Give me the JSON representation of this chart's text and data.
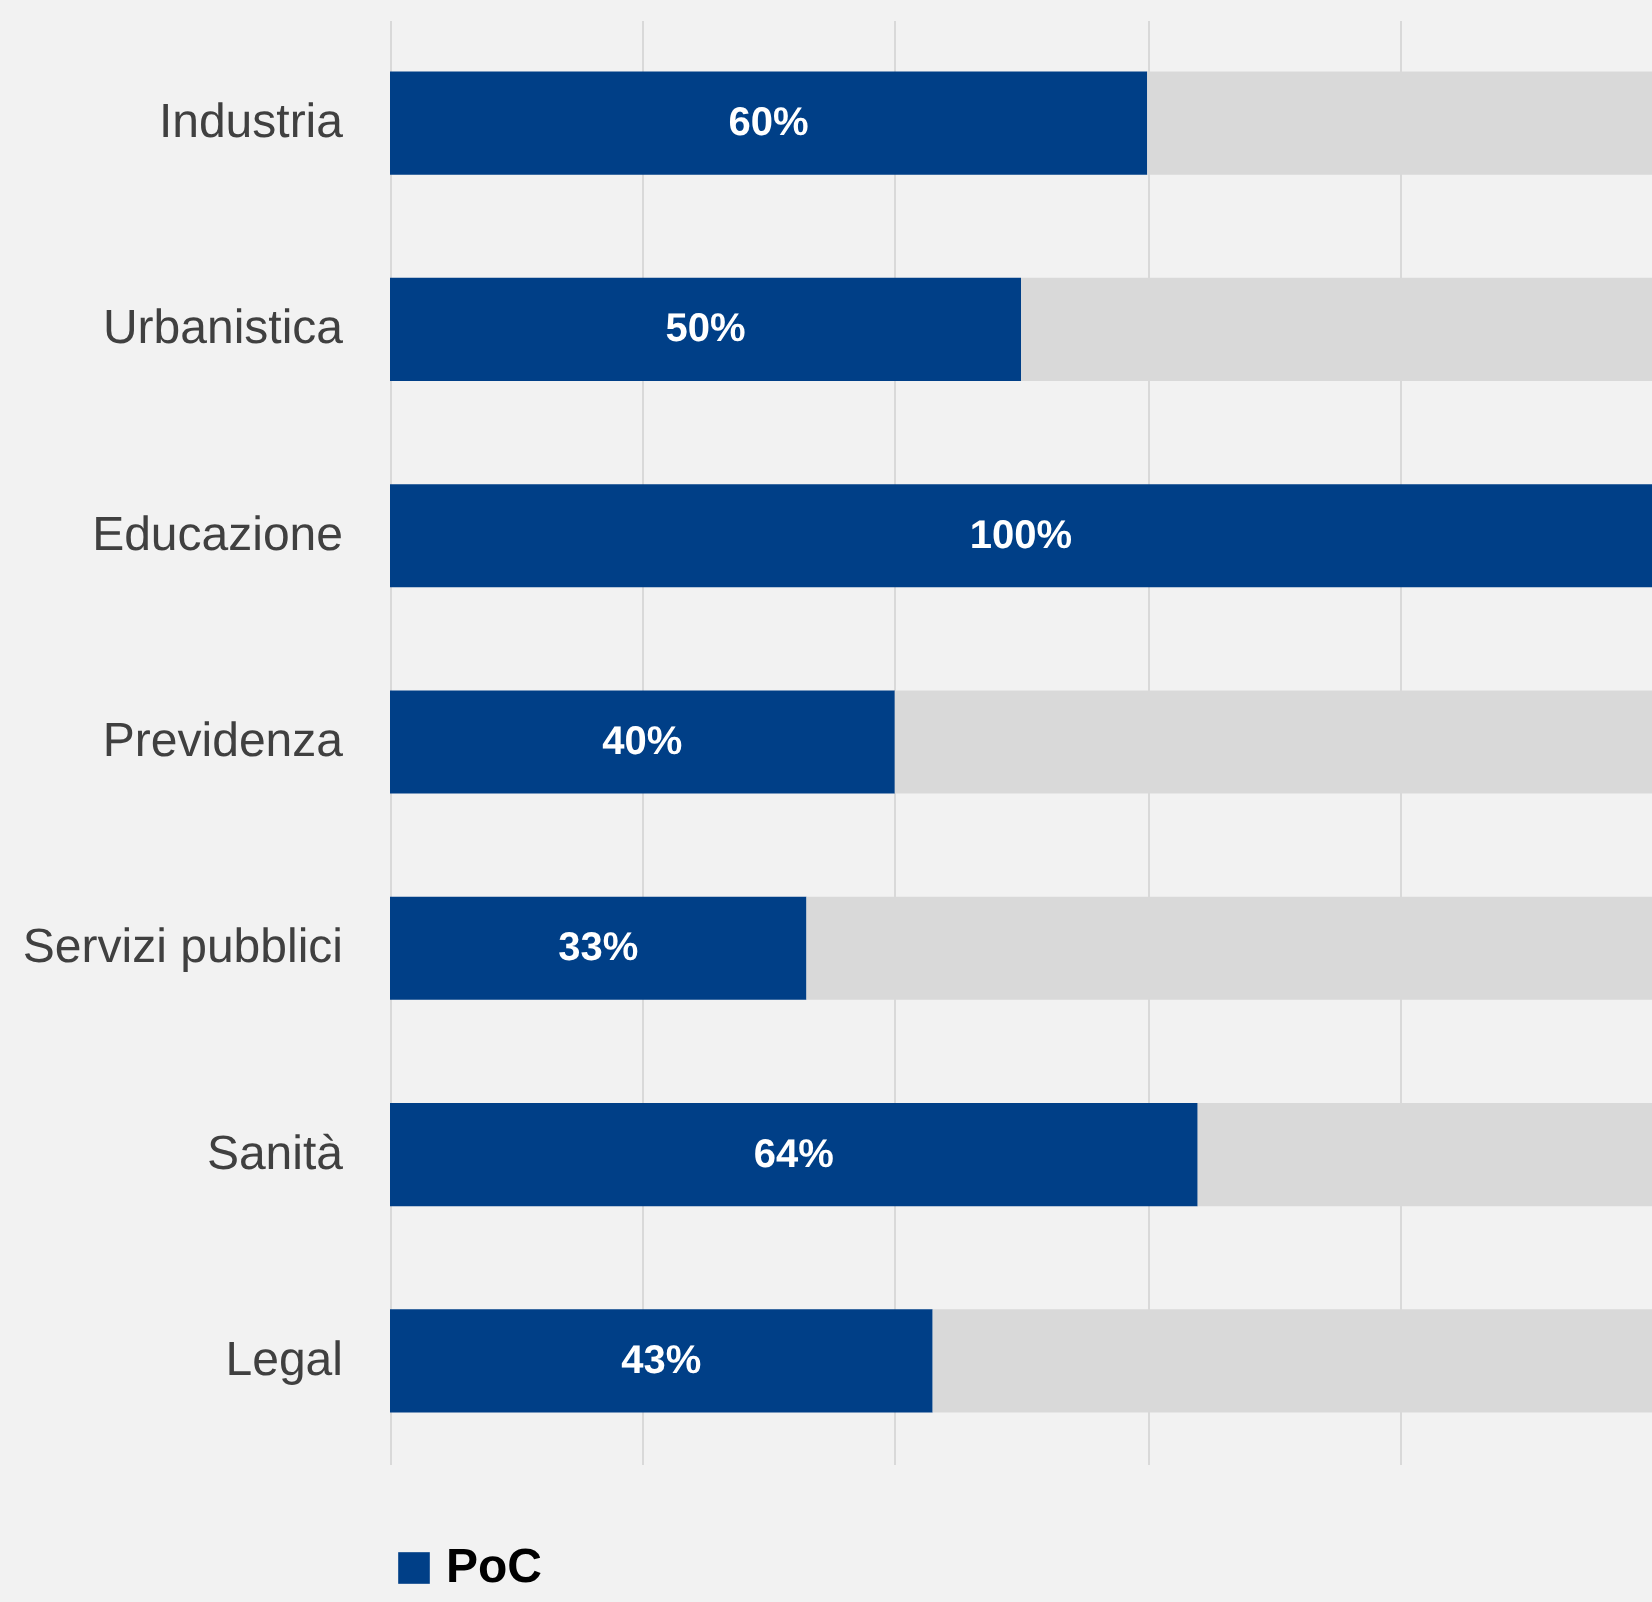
{
  "chart_data": {
    "type": "bar",
    "orientation": "horizontal",
    "stacked": true,
    "categories": [
      "Industria",
      "Urbanistica",
      "Educazione",
      "Previdenza",
      "Servizi pubblici",
      "Sanità",
      "Legal"
    ],
    "series": [
      {
        "name": "PoC",
        "color": "#003f87",
        "values": [
          60,
          50,
          100,
          40,
          33,
          64,
          43
        ],
        "value_labels": [
          "60%",
          "50%",
          "100%",
          "40%",
          "33%",
          "64%",
          "43%"
        ]
      },
      {
        "color": "#d9d9d9",
        "values": [
          40,
          50,
          0,
          60,
          67,
          36,
          57
        ]
      }
    ],
    "xlim": [
      0,
      100
    ],
    "xticks": [
      {
        "value": 0,
        "label": null
      },
      {
        "value": 20,
        "label": null
      },
      {
        "value": 40,
        "label": null
      },
      {
        "value": 60,
        "label": null
      },
      {
        "value": 80,
        "label": null
      },
      {
        "value": 100,
        "label": null
      }
    ],
    "tick_labels": "y",
    "grid": "x",
    "legend": "bottom"
  }
}
